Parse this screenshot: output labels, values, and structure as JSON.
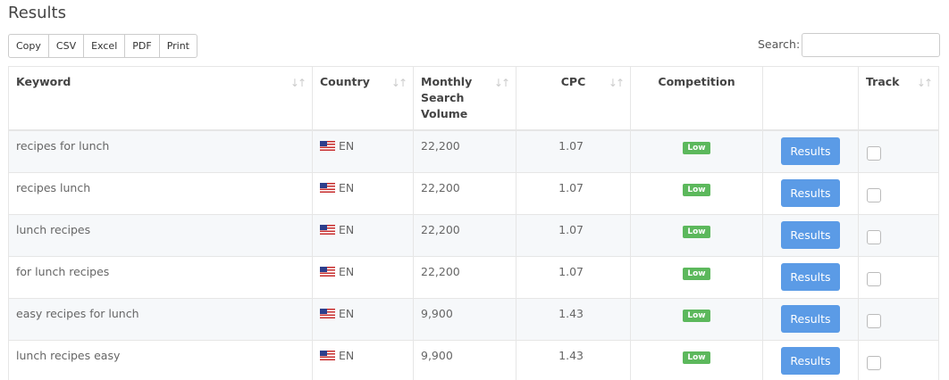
{
  "page": {
    "title": "Results"
  },
  "toolbar": {
    "buttons": [
      "Copy",
      "CSV",
      "Excel",
      "PDF",
      "Print"
    ]
  },
  "search": {
    "label": "Search:",
    "value": "",
    "placeholder": ""
  },
  "table": {
    "headers": {
      "keyword": "Keyword",
      "country": "Country",
      "volume": "Monthly Search Volume",
      "cpc": "CPC",
      "competition": "Competition",
      "action": "",
      "track": "Track"
    },
    "rows": [
      {
        "keyword": "recipes for lunch",
        "country": "EN",
        "volume": "22,200",
        "cpc": "1.07",
        "competition": "Low",
        "action": "Results"
      },
      {
        "keyword": "recipes lunch",
        "country": "EN",
        "volume": "22,200",
        "cpc": "1.07",
        "competition": "Low",
        "action": "Results"
      },
      {
        "keyword": "lunch recipes",
        "country": "EN",
        "volume": "22,200",
        "cpc": "1.07",
        "competition": "Low",
        "action": "Results"
      },
      {
        "keyword": "for lunch recipes",
        "country": "EN",
        "volume": "22,200",
        "cpc": "1.07",
        "competition": "Low",
        "action": "Results"
      },
      {
        "keyword": "easy recipes for lunch",
        "country": "EN",
        "volume": "9,900",
        "cpc": "1.43",
        "competition": "Low",
        "action": "Results"
      },
      {
        "keyword": "lunch recipes easy",
        "country": "EN",
        "volume": "9,900",
        "cpc": "1.43",
        "competition": "Low",
        "action": "Results"
      }
    ]
  },
  "colors": {
    "badge_low": "#5cb85c",
    "results_button": "#5b9be6",
    "row_alt": "#f6f8fa"
  },
  "icons": {
    "sort": "sort-arrows-icon",
    "flag": "us-flag-icon"
  }
}
